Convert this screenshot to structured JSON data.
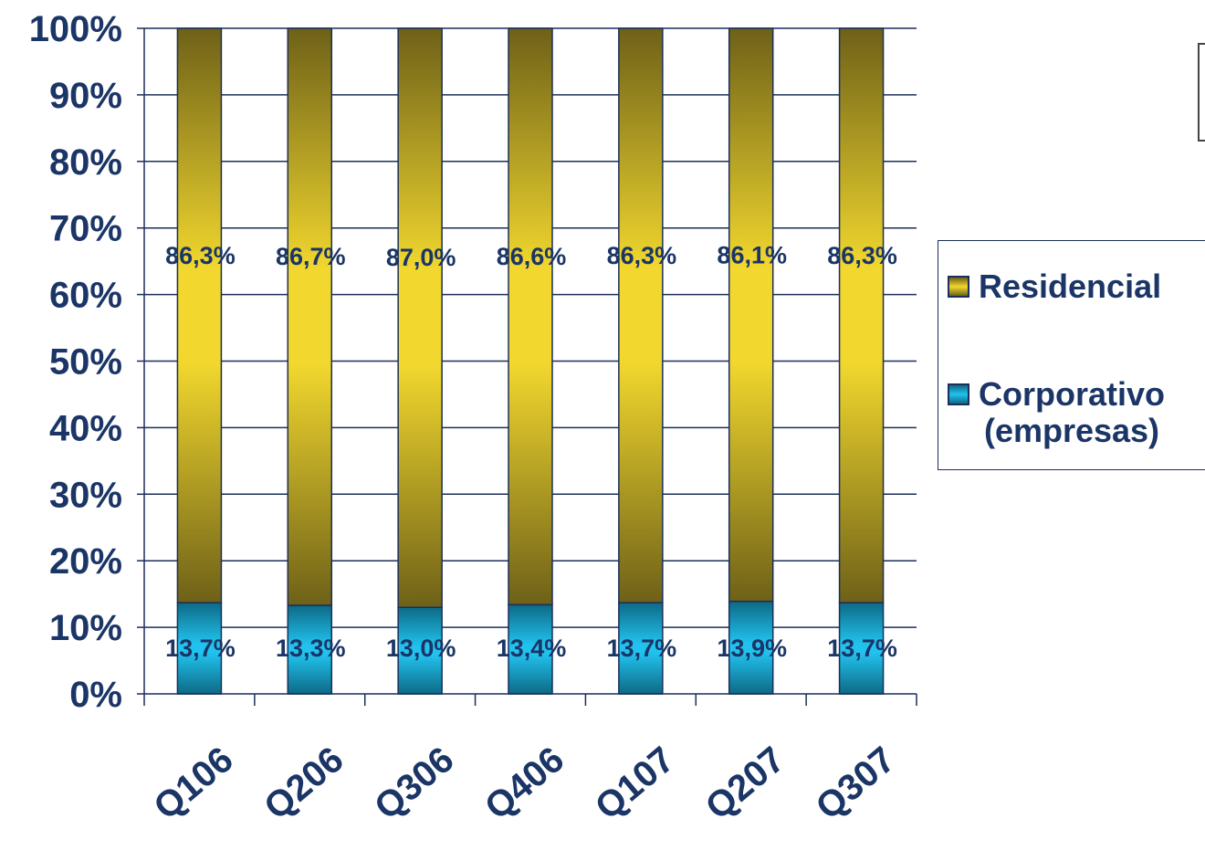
{
  "chart_data": {
    "type": "bar",
    "stacked": true,
    "categories": [
      "Q106",
      "Q206",
      "Q306",
      "Q406",
      "Q107",
      "Q207",
      "Q307"
    ],
    "series": [
      {
        "name": "Corporativo (empresas)",
        "name_lines": [
          "Corporativo",
          "(empresas)"
        ],
        "values": [
          13.7,
          13.3,
          13.0,
          13.4,
          13.7,
          13.9,
          13.7
        ],
        "labels": [
          "13,7%",
          "13,3%",
          "13,0%",
          "13,4%",
          "13,7%",
          "13,9%",
          "13,7%"
        ],
        "color": "#1ab4e0"
      },
      {
        "name": "Residencial",
        "name_lines": [
          "Residencial"
        ],
        "values": [
          86.3,
          86.7,
          87.0,
          86.6,
          86.3,
          86.1,
          86.3
        ],
        "labels": [
          "86,3%",
          "86,7%",
          "87,0%",
          "86,6%",
          "86,3%",
          "86,1%",
          "86,3%"
        ],
        "color": "#e8c82a"
      }
    ],
    "ylim": [
      0,
      100
    ],
    "yticks": [
      "0%",
      "10%",
      "20%",
      "30%",
      "40%",
      "50%",
      "60%",
      "70%",
      "80%",
      "90%",
      "100%"
    ],
    "grid": true,
    "legend_position": "right",
    "title": "",
    "xlabel": "",
    "ylabel": "",
    "label_color": "#1a3566"
  }
}
